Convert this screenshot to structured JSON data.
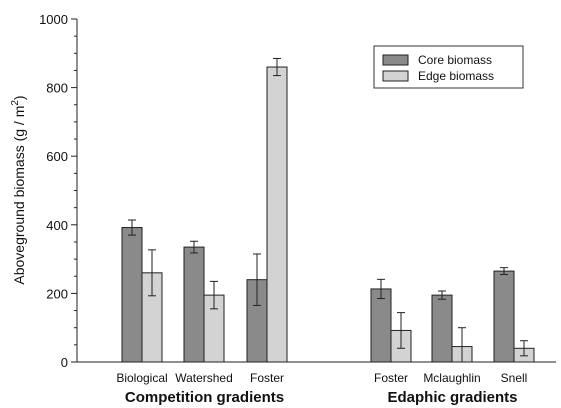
{
  "chart_data": {
    "type": "bar",
    "ylabel_main": "Aboveground biomass (g / m",
    "ylabel_sup": "2",
    "ylabel_close": ")",
    "ylim": [
      0,
      1000
    ],
    "yticks": [
      0,
      200,
      400,
      600,
      800,
      1000
    ],
    "categories": [
      "Biological",
      "Watershed",
      "Foster",
      "Foster",
      "Mclaughlin",
      "Snell"
    ],
    "groups": [
      {
        "label": "Competition gradients",
        "categories": [
          "Biological",
          "Watershed",
          "Foster"
        ]
      },
      {
        "label": "Edaphic gradients",
        "categories": [
          "Foster",
          "Mclaughlin",
          "Snell"
        ]
      }
    ],
    "series": [
      {
        "name": "Core biomass",
        "color": "#8a8a8a",
        "values": [
          392,
          335,
          240,
          213,
          195,
          265
        ],
        "errors": [
          22,
          17,
          75,
          28,
          12,
          10
        ]
      },
      {
        "name": "Edge biomass",
        "color": "#d3d3d3",
        "values": [
          260,
          195,
          860,
          92,
          45,
          40
        ],
        "errors": [
          67,
          40,
          25,
          52,
          55,
          22
        ]
      }
    ],
    "legend": "top-right",
    "grid": false
  }
}
